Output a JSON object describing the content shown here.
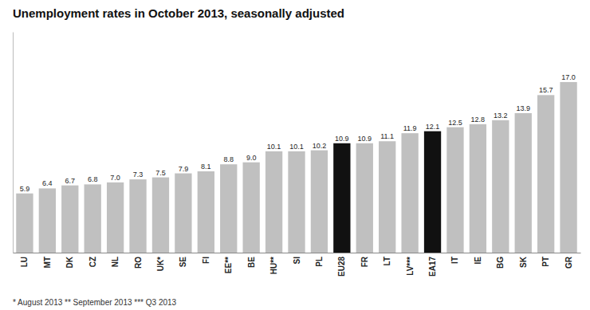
{
  "chart_data": {
    "type": "bar",
    "title": "Unemployment rates in October 2013, seasonally adjusted",
    "categories": [
      "LU",
      "MT",
      "DK",
      "CZ",
      "NL",
      "RO",
      "UK*",
      "SE",
      "FI",
      "EE**",
      "BE",
      "HU**",
      "SI",
      "PL",
      "EU28",
      "FR",
      "LT",
      "LV***",
      "EA17",
      "IT",
      "IE",
      "BG",
      "SK",
      "PT",
      "GR"
    ],
    "values": [
      5.9,
      6.4,
      6.7,
      6.8,
      7.0,
      7.3,
      7.5,
      7.9,
      8.1,
      8.8,
      9.0,
      10.1,
      10.1,
      10.2,
      10.9,
      10.9,
      11.1,
      11.9,
      12.1,
      12.5,
      12.8,
      13.2,
      13.9,
      15.7,
      17.0
    ],
    "value_labels": [
      "5.9",
      "6.4",
      "6.7",
      "6.8",
      "7.0",
      "7.3",
      "7.5",
      "7.9",
      "8.1",
      "8.8",
      "9.0",
      "10.1",
      "10.1",
      "10.2",
      "10.9",
      "10.9",
      "11.1",
      "11.9",
      "12.1",
      "12.5",
      "12.8",
      "13.2",
      "13.9",
      "15.7",
      "17.0"
    ],
    "colors": [
      "#c0c0c0",
      "#c0c0c0",
      "#c0c0c0",
      "#c0c0c0",
      "#c0c0c0",
      "#c0c0c0",
      "#c0c0c0",
      "#c0c0c0",
      "#c0c0c0",
      "#c0c0c0",
      "#c0c0c0",
      "#c0c0c0",
      "#c0c0c0",
      "#c0c0c0",
      "#111111",
      "#c0c0c0",
      "#c0c0c0",
      "#c0c0c0",
      "#111111",
      "#c0c0c0",
      "#c0c0c0",
      "#c0c0c0",
      "#c0c0c0",
      "#c0c0c0",
      "#c0c0c0"
    ],
    "ylim": [
      0,
      22
    ],
    "data_labels": true,
    "tick_labels": "x",
    "grid": false,
    "annotations": [
      "* August 2013   ** September 2013   *** Q3 2013"
    ]
  }
}
